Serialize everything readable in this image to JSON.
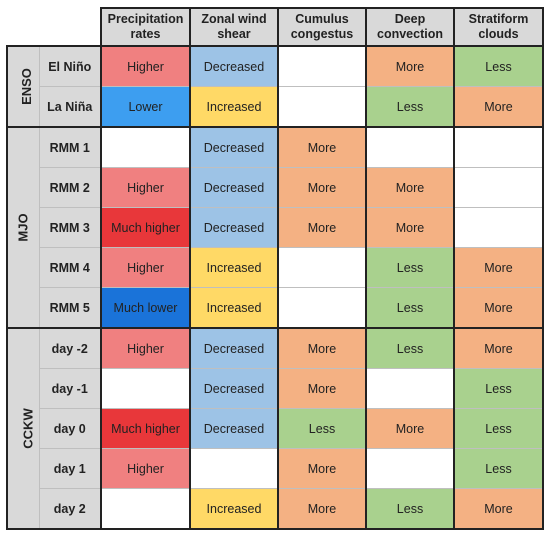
{
  "columns": [
    "Precipitation rates",
    "Zonal wind shear",
    "Cumulus congestus",
    "Deep convection",
    "Stratiform clouds"
  ],
  "colors": {
    "empty": "#ffffff",
    "higher": "#f08080",
    "much_higher": "#e8373a",
    "lower": "#3d9ef0",
    "much_lower": "#1a73d9",
    "decreased": "#9dc3e6",
    "increased": "#ffd966",
    "more": "#f4b183",
    "less": "#a9d18e"
  },
  "groups": [
    {
      "name": "ENSO",
      "rows": [
        {
          "label": "El Niño",
          "cells": [
            {
              "text": "Higher",
              "color": "higher"
            },
            {
              "text": "Decreased",
              "color": "decreased"
            },
            {
              "text": "",
              "color": "empty"
            },
            {
              "text": "More",
              "color": "more"
            },
            {
              "text": "Less",
              "color": "less"
            }
          ]
        },
        {
          "label": "La Niña",
          "cells": [
            {
              "text": "Lower",
              "color": "lower"
            },
            {
              "text": "Increased",
              "color": "increased"
            },
            {
              "text": "",
              "color": "empty"
            },
            {
              "text": "Less",
              "color": "less"
            },
            {
              "text": "More",
              "color": "more"
            }
          ]
        }
      ]
    },
    {
      "name": "MJO",
      "rows": [
        {
          "label": "RMM 1",
          "cells": [
            {
              "text": "",
              "color": "empty"
            },
            {
              "text": "Decreased",
              "color": "decreased"
            },
            {
              "text": "More",
              "color": "more"
            },
            {
              "text": "",
              "color": "empty"
            },
            {
              "text": "",
              "color": "empty"
            }
          ]
        },
        {
          "label": "RMM 2",
          "cells": [
            {
              "text": "Higher",
              "color": "higher"
            },
            {
              "text": "Decreased",
              "color": "decreased"
            },
            {
              "text": "More",
              "color": "more"
            },
            {
              "text": "More",
              "color": "more"
            },
            {
              "text": "",
              "color": "empty"
            }
          ]
        },
        {
          "label": "RMM 3",
          "cells": [
            {
              "text": "Much higher",
              "color": "much_higher"
            },
            {
              "text": "Decreased",
              "color": "decreased"
            },
            {
              "text": "More",
              "color": "more"
            },
            {
              "text": "More",
              "color": "more"
            },
            {
              "text": "",
              "color": "empty"
            }
          ]
        },
        {
          "label": "RMM 4",
          "cells": [
            {
              "text": "Higher",
              "color": "higher"
            },
            {
              "text": "Increased",
              "color": "increased"
            },
            {
              "text": "",
              "color": "empty"
            },
            {
              "text": "Less",
              "color": "less"
            },
            {
              "text": "More",
              "color": "more"
            }
          ]
        },
        {
          "label": "RMM 5",
          "cells": [
            {
              "text": "Much lower",
              "color": "much_lower"
            },
            {
              "text": "Increased",
              "color": "increased"
            },
            {
              "text": "",
              "color": "empty"
            },
            {
              "text": "Less",
              "color": "less"
            },
            {
              "text": "More",
              "color": "more"
            }
          ]
        }
      ]
    },
    {
      "name": "CCKW",
      "rows": [
        {
          "label": "day -2",
          "cells": [
            {
              "text": "Higher",
              "color": "higher"
            },
            {
              "text": "Decreased",
              "color": "decreased"
            },
            {
              "text": "More",
              "color": "more"
            },
            {
              "text": "Less",
              "color": "less"
            },
            {
              "text": "More",
              "color": "more"
            }
          ]
        },
        {
          "label": "day -1",
          "cells": [
            {
              "text": "",
              "color": "empty"
            },
            {
              "text": "Decreased",
              "color": "decreased"
            },
            {
              "text": "More",
              "color": "more"
            },
            {
              "text": "",
              "color": "empty"
            },
            {
              "text": "Less",
              "color": "less"
            }
          ]
        },
        {
          "label": "day 0",
          "cells": [
            {
              "text": "Much higher",
              "color": "much_higher"
            },
            {
              "text": "Decreased",
              "color": "decreased"
            },
            {
              "text": "Less",
              "color": "less"
            },
            {
              "text": "More",
              "color": "more"
            },
            {
              "text": "Less",
              "color": "less"
            }
          ]
        },
        {
          "label": "day 1",
          "cells": [
            {
              "text": "Higher",
              "color": "higher"
            },
            {
              "text": "",
              "color": "empty"
            },
            {
              "text": "More",
              "color": "more"
            },
            {
              "text": "",
              "color": "empty"
            },
            {
              "text": "Less",
              "color": "less"
            }
          ]
        },
        {
          "label": "day 2",
          "cells": [
            {
              "text": "",
              "color": "empty"
            },
            {
              "text": "Increased",
              "color": "increased"
            },
            {
              "text": "More",
              "color": "more"
            },
            {
              "text": "Less",
              "color": "less"
            },
            {
              "text": "More",
              "color": "more"
            }
          ]
        }
      ]
    }
  ]
}
